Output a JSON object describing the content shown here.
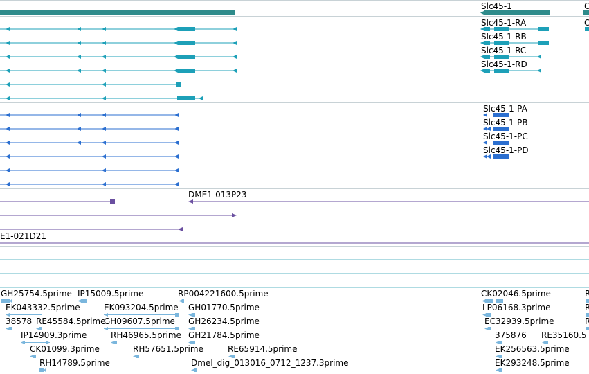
{
  "colors": {
    "gene": "#2e8b8b",
    "transcript_r": "#1da0b8",
    "transcript_p": "#2b6fd0",
    "clone": "#6a4fa0",
    "est": "#7ab6dd",
    "divider_dark": "#90a4ae",
    "divider_light": "#5fb7c5"
  },
  "gene_track": {
    "gene_label": "Slc45-1",
    "partial_label": "C"
  },
  "transcripts_r": [
    {
      "label": "Slc45-1-RA"
    },
    {
      "label": "Slc45-1-RB"
    },
    {
      "label": "Slc45-1-RC"
    },
    {
      "label": "Slc45-1-RD"
    }
  ],
  "transcripts_p": [
    {
      "label": "Slc45-1-PA"
    },
    {
      "label": "Slc45-1-PB"
    },
    {
      "label": "Slc45-1-PC"
    },
    {
      "label": "Slc45-1-PD"
    }
  ],
  "clones": [
    {
      "label": "DME1-013P23"
    },
    {
      "label": "E1-021D21"
    }
  ],
  "ests": [
    {
      "label": "GH25754.5prime"
    },
    {
      "label": "IP15009.5prime"
    },
    {
      "label": "RP004221600.5prime"
    },
    {
      "label": "CK02046.5prime"
    },
    {
      "label": "R"
    },
    {
      "label": "EK043332.5prime"
    },
    {
      "label": "EK093204.5prime"
    },
    {
      "label": "GH01770.5prime"
    },
    {
      "label": "LP06168.3prime"
    },
    {
      "label": "R"
    },
    {
      "label": "38578"
    },
    {
      "label": "RE45584.5prime"
    },
    {
      "label": "GH09607.5prime"
    },
    {
      "label": "GH26234.5prime"
    },
    {
      "label": "EC32939.5prime"
    },
    {
      "label": "R"
    },
    {
      "label": "IP14909.3prime"
    },
    {
      "label": "RH46965.5prime"
    },
    {
      "label": "GH21784.5prime"
    },
    {
      "label": "375876"
    },
    {
      "label": "RE35160.5"
    },
    {
      "label": "CK01099.3prime"
    },
    {
      "label": "RH57651.5prime"
    },
    {
      "label": "RE65914.5prime"
    },
    {
      "label": "EK256563.5prime"
    },
    {
      "label": "RH14789.5prime"
    },
    {
      "label": "Dmel_dig_013016_0712_1237.3prime"
    },
    {
      "label": "EK293248.5prime"
    }
  ]
}
